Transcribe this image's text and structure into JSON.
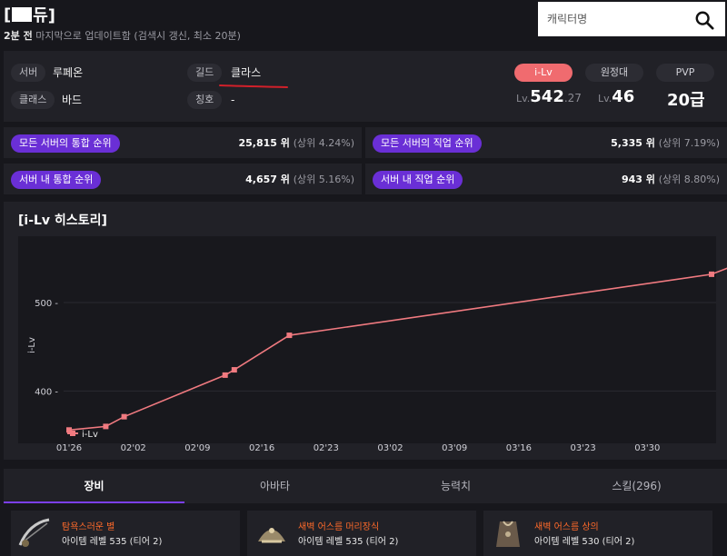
{
  "character": {
    "name_suffix": "듀]",
    "name_prefix": "[",
    "updated_ago": "2분 전",
    "updated_note": "마지막으로 업데이트함 (검색시 갱신, 최소 20분)"
  },
  "search": {
    "placeholder": "캐릭터명"
  },
  "profile": {
    "server_label": "서버",
    "server_value": "루페온",
    "class_label": "클래스",
    "class_value": "바드",
    "guild_label": "길드",
    "guild_value": "클라스",
    "title_label": "칭호",
    "title_value": "-",
    "ilv_label": "i-Lv",
    "ilv_prefix": "Lv.",
    "ilv_int": "542",
    "ilv_dec": ".27",
    "expedition_label": "원정대",
    "expedition_prefix": "Lv.",
    "expedition_value": "46",
    "pvp_label": "PVP",
    "pvp_value": "20급"
  },
  "ranks": [
    {
      "label": "모든 서버의 통합 순위",
      "value": "25,815 위",
      "pct": "(상위 4.24%)"
    },
    {
      "label": "모든 서버의 직업 순위",
      "value": "5,335 위",
      "pct": "(상위 7.19%)"
    },
    {
      "label": "서버 내 통합 순위",
      "value": "4,657 위",
      "pct": "(상위 5.16%)"
    },
    {
      "label": "서버 내 직업 순위",
      "value": "943 위",
      "pct": "(상위 8.80%)"
    }
  ],
  "history": {
    "title": "[i-Lv 히스토리]"
  },
  "chart_data": {
    "type": "line",
    "ylabel": "i-Lv",
    "legend": "i-Lv",
    "legend_position": "bottom-left",
    "ylim": [
      345,
      575
    ],
    "y_ticks": [
      400,
      500
    ],
    "x_ticks": [
      "01'26",
      "02'02",
      "02'09",
      "02'16",
      "02'23",
      "03'02",
      "03'09",
      "03'16",
      "03'23",
      "03'30"
    ],
    "x": [
      "01-26",
      "01-30",
      "02-01",
      "02-12",
      "02-13",
      "02-19",
      "04-05",
      "04-07"
    ],
    "values": [
      356,
      360,
      371,
      418,
      424,
      463,
      532,
      540
    ],
    "color": "#f07a80"
  },
  "tabs": [
    {
      "label": "장비"
    },
    {
      "label": "아바타"
    },
    {
      "label": "능력치"
    },
    {
      "label": "스킬(296)"
    }
  ],
  "equipment": [
    {
      "name": "탐욕스러운 별",
      "level": "아이템 레벨 535 (티어 2)"
    },
    {
      "name": "새벽 어스름 머리장식",
      "level": "아이템 레벨 535 (티어 2)"
    },
    {
      "name": "새벽 어스름 상의",
      "level": "아이템 레벨 530 (티어 2)"
    }
  ]
}
